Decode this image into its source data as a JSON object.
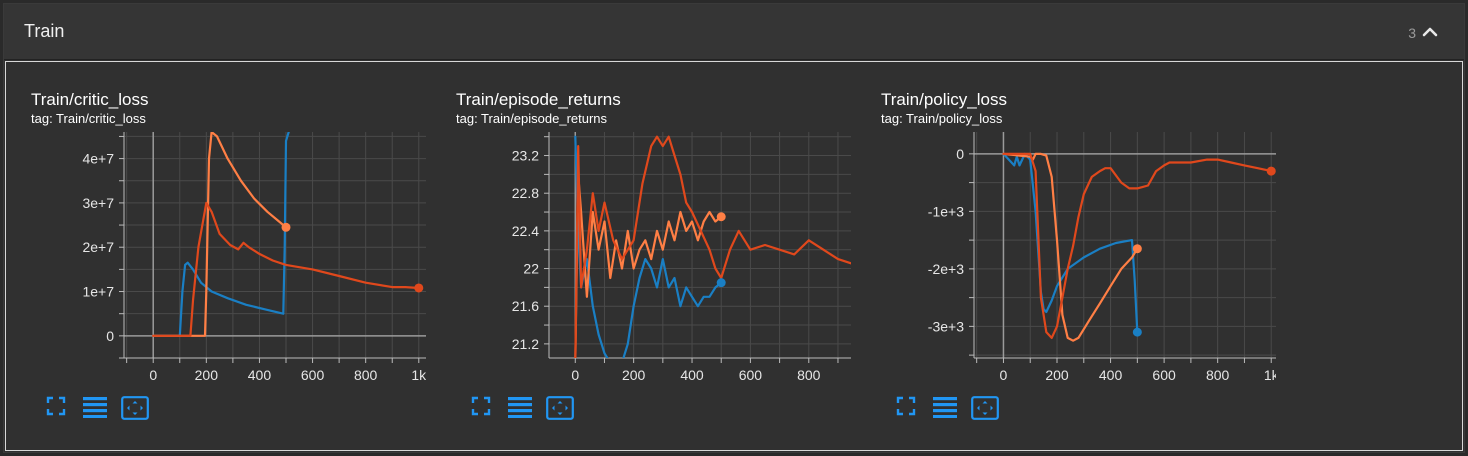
{
  "section": {
    "title": "Train",
    "count": "3",
    "collapse_icon": "chevron-up-icon"
  },
  "colors": {
    "blue": "#1a7fc4",
    "orange": "#ff7f45",
    "darkorange": "#e0481c"
  },
  "cards": [
    {
      "title": "Train/critic_loss",
      "tag": "tag: Train/critic_loss",
      "tools": [
        "fullscreen-icon",
        "list-icon",
        "fit-domain-icon"
      ]
    },
    {
      "title": "Train/episode_returns",
      "tag": "tag: Train/episode_returns",
      "tools": [
        "fullscreen-icon",
        "list-icon",
        "fit-domain-icon"
      ]
    },
    {
      "title": "Train/policy_loss",
      "tag": "tag: Train/policy_loss",
      "tools": [
        "fullscreen-icon",
        "list-icon",
        "fit-domain-icon"
      ]
    }
  ],
  "chart_data": [
    {
      "type": "line",
      "title": "Train/critic_loss",
      "xlim": [
        -110,
        1110
      ],
      "ylim": [
        -5000000,
        46000000
      ],
      "xticks": [
        0,
        200,
        400,
        600,
        800,
        1000
      ],
      "xtick_labels": [
        "0",
        "200",
        "400",
        "600",
        "800",
        "1k"
      ],
      "yticks": [
        0,
        10000000,
        20000000,
        30000000,
        40000000
      ],
      "ytick_labels": [
        "0",
        "1e+7",
        "2e+7",
        "3e+7",
        "4e+7"
      ],
      "series": [
        {
          "color": "#1a7fc4",
          "x": [
            0,
            100,
            110,
            120,
            130,
            150,
            180,
            220,
            280,
            350,
            420,
            490,
            495,
            500,
            510
          ],
          "y": [
            0,
            0,
            10000000,
            16000000,
            16500000,
            15000000,
            12000000,
            10000000,
            8500000,
            7000000,
            6000000,
            5000000,
            20000000,
            44000000,
            46000000
          ],
          "end_marker": false
        },
        {
          "color": "#ff7f45",
          "x": [
            0,
            195,
            200,
            210,
            220,
            240,
            280,
            330,
            380,
            430,
            470,
            500
          ],
          "y": [
            0,
            0,
            10000000,
            40000000,
            46000000,
            45000000,
            40000000,
            35000000,
            31000000,
            28000000,
            26000000,
            24500000
          ],
          "end_marker": true
        },
        {
          "color": "#e0481c",
          "x": [
            0,
            140,
            150,
            170,
            200,
            220,
            250,
            290,
            320,
            340,
            360,
            400,
            450,
            500,
            550,
            600,
            700,
            800,
            900,
            950,
            1000
          ],
          "y": [
            0,
            0,
            8000000,
            20000000,
            30000000,
            28000000,
            23000000,
            20500000,
            19500000,
            21000000,
            20000000,
            18500000,
            17000000,
            16000000,
            15500000,
            15000000,
            13500000,
            12000000,
            11000000,
            11000000,
            10800000
          ],
          "end_marker": true
        }
      ]
    },
    {
      "type": "line",
      "title": "Train/episode_returns",
      "xlim": [
        -90,
        1020
      ],
      "ylim": [
        21.05,
        23.45
      ],
      "xticks": [
        0,
        200,
        400,
        600,
        800,
        1000
      ],
      "xtick_labels": [
        "0",
        "200",
        "400",
        "600",
        "800",
        "1k"
      ],
      "yticks": [
        21.2,
        21.6,
        22,
        22.4,
        22.8,
        23.2
      ],
      "ytick_labels": [
        "21.2",
        "21.6",
        "22",
        "22.4",
        "22.8",
        "23.2"
      ],
      "series": [
        {
          "color": "#1a7fc4",
          "x": [
            0,
            10,
            20,
            40,
            60,
            80,
            100,
            120,
            140,
            160,
            180,
            200,
            220,
            240,
            260,
            280,
            300,
            320,
            340,
            360,
            380,
            400,
            420,
            440,
            460,
            480,
            500
          ],
          "y": [
            23.4,
            22.4,
            21.8,
            22.1,
            21.6,
            21.3,
            21.1,
            21.0,
            20.9,
            21.0,
            21.2,
            21.6,
            21.9,
            22.1,
            22.0,
            21.8,
            22.1,
            21.8,
            21.9,
            21.6,
            21.8,
            21.7,
            21.6,
            21.7,
            21.7,
            21.8,
            21.85
          ],
          "end_marker": true
        },
        {
          "color": "#ff7f45",
          "x": [
            0,
            10,
            20,
            40,
            60,
            80,
            100,
            120,
            140,
            160,
            180,
            200,
            220,
            240,
            260,
            280,
            300,
            320,
            340,
            360,
            380,
            400,
            420,
            440,
            460,
            480,
            500
          ],
          "y": [
            21.0,
            23.0,
            22.6,
            21.7,
            22.6,
            22.2,
            22.5,
            21.9,
            22.3,
            22.0,
            22.4,
            22.0,
            22.2,
            22.3,
            22.1,
            22.4,
            22.2,
            22.5,
            22.3,
            22.6,
            22.4,
            22.5,
            22.3,
            22.5,
            22.6,
            22.5,
            22.55
          ],
          "end_marker": true
        },
        {
          "color": "#e0481c",
          "x": [
            0,
            10,
            20,
            40,
            60,
            80,
            100,
            130,
            160,
            200,
            230,
            260,
            280,
            300,
            320,
            340,
            360,
            380,
            400,
            430,
            460,
            480,
            500,
            530,
            560,
            600,
            650,
            700,
            750,
            800,
            850,
            900,
            950,
            1000
          ],
          "y": [
            21.0,
            23.3,
            21.8,
            22.2,
            22.8,
            22.4,
            22.7,
            22.3,
            22.1,
            22.3,
            22.9,
            23.3,
            23.4,
            23.3,
            23.4,
            23.2,
            23.0,
            22.7,
            22.6,
            22.4,
            22.2,
            22.0,
            21.9,
            22.2,
            22.4,
            22.2,
            22.25,
            22.2,
            22.15,
            22.3,
            22.2,
            22.1,
            22.05,
            22.08
          ],
          "end_marker": true
        }
      ]
    },
    {
      "type": "line",
      "title": "Train/policy_loss",
      "xlim": [
        -110,
        1100
      ],
      "ylim": [
        -3550,
        380
      ],
      "xticks": [
        0,
        200,
        400,
        600,
        800,
        1000
      ],
      "xtick_labels": [
        "0",
        "200",
        "400",
        "600",
        "800",
        "1k"
      ],
      "yticks": [
        0,
        -1000,
        -2000,
        -3000
      ],
      "ytick_labels": [
        "0",
        "-1e+3",
        "-2e+3",
        "-3e+3"
      ],
      "series": [
        {
          "color": "#1a7fc4",
          "x": [
            0,
            40,
            50,
            60,
            70,
            80,
            100,
            120,
            140,
            150,
            160,
            180,
            200,
            240,
            300,
            360,
            420,
            480,
            490,
            500
          ],
          "y": [
            0,
            -200,
            -50,
            -200,
            -100,
            0,
            -100,
            -1000,
            -2400,
            -2700,
            -2750,
            -2550,
            -2300,
            -2000,
            -1800,
            -1650,
            -1550,
            -1500,
            -2200,
            -3100
          ],
          "end_marker": true
        },
        {
          "color": "#ff7f45",
          "x": [
            0,
            100,
            110,
            120,
            140,
            160,
            180,
            200,
            220,
            240,
            260,
            280,
            320,
            360,
            400,
            440,
            480,
            500
          ],
          "y": [
            0,
            -50,
            -100,
            0,
            0,
            -30,
            -400,
            -1500,
            -2800,
            -3200,
            -3250,
            -3200,
            -2900,
            -2600,
            -2300,
            -2000,
            -1800,
            -1650
          ],
          "end_marker": true
        },
        {
          "color": "#e0481c",
          "x": [
            0,
            100,
            120,
            140,
            160,
            180,
            200,
            220,
            240,
            260,
            280,
            300,
            330,
            360,
            380,
            400,
            440,
            470,
            500,
            540,
            570,
            600,
            620,
            700,
            760,
            800,
            850,
            900,
            950,
            1000
          ],
          "y": [
            0,
            0,
            -300,
            -2500,
            -3100,
            -3200,
            -3000,
            -2500,
            -2000,
            -1600,
            -1100,
            -700,
            -400,
            -300,
            -250,
            -250,
            -500,
            -600,
            -600,
            -550,
            -300,
            -200,
            -150,
            -150,
            -100,
            -100,
            -150,
            -200,
            -250,
            -300
          ],
          "end_marker": true
        }
      ]
    }
  ]
}
